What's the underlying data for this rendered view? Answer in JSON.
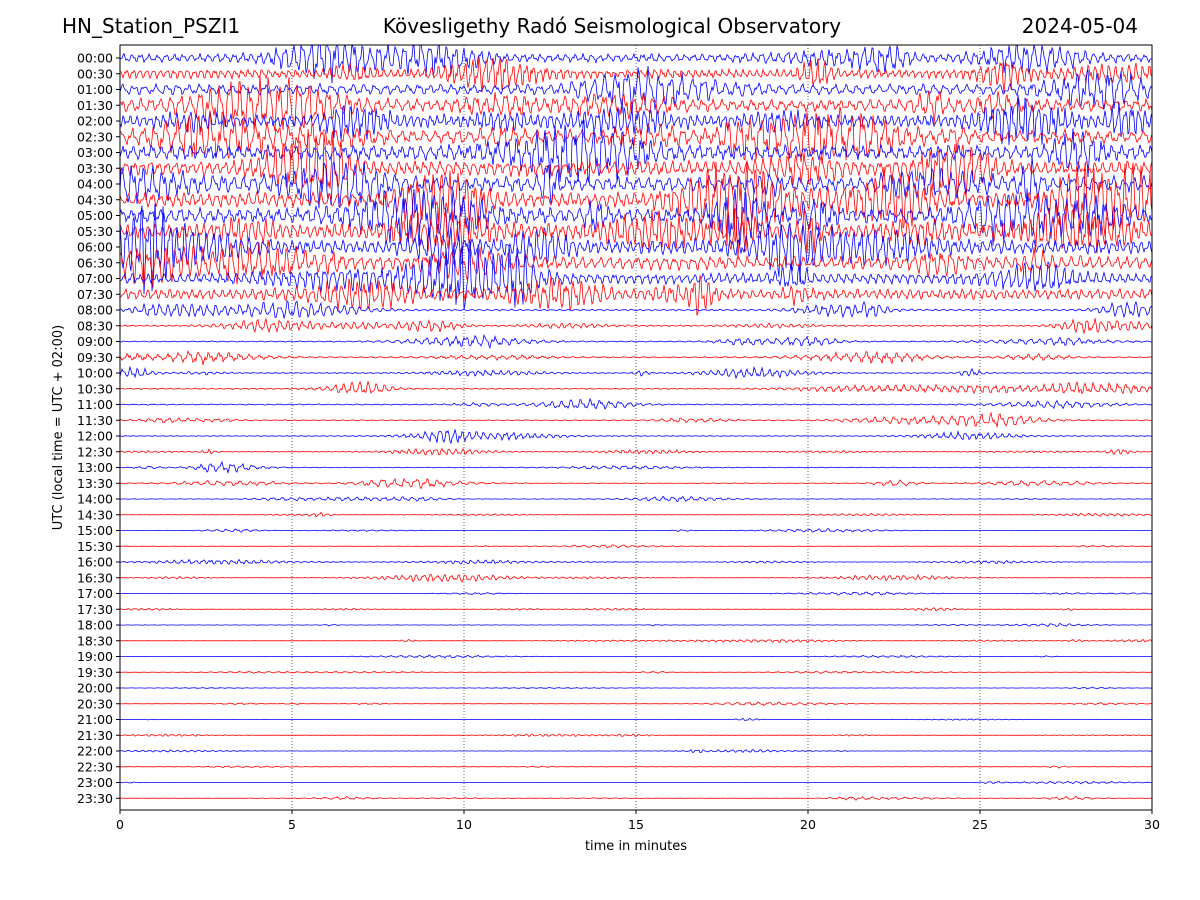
{
  "chart_data": {
    "type": "line",
    "title_left": "HN_Station_PSZI1",
    "title_center": "Kövesligethy Radó Seismological Observatory",
    "title_right": "2024-05-04",
    "xlabel": "time in minutes",
    "ylabel": "UTC (local time = UTC + 02:00)",
    "xlim": [
      0,
      30
    ],
    "x_ticks": [
      0,
      5,
      10,
      15,
      20,
      25,
      30
    ],
    "grid": "vertical dotted",
    "row_labels": [
      "00:00",
      "00:30",
      "01:00",
      "01:30",
      "02:00",
      "02:30",
      "03:00",
      "03:30",
      "04:00",
      "04:30",
      "05:00",
      "05:30",
      "06:00",
      "06:30",
      "07:00",
      "07:30",
      "08:00",
      "08:30",
      "09:00",
      "09:30",
      "10:00",
      "10:30",
      "11:00",
      "11:30",
      "12:00",
      "12:30",
      "13:00",
      "13:30",
      "14:00",
      "14:30",
      "15:00",
      "15:30",
      "16:00",
      "16:30",
      "17:00",
      "17:30",
      "18:00",
      "18:30",
      "19:00",
      "19:30",
      "20:00",
      "20:30",
      "21:00",
      "21:30",
      "22:00",
      "22:30",
      "23:00",
      "23:30"
    ],
    "row_colors": [
      "#0000ff",
      "#ff0000"
    ],
    "amplitude_level": [
      0.55,
      0.6,
      0.7,
      0.8,
      0.85,
      0.9,
      1.0,
      1.0,
      1.0,
      1.0,
      1.0,
      1.0,
      0.95,
      0.9,
      0.7,
      0.7,
      0.3,
      0.25,
      0.2,
      0.2,
      0.15,
      0.2,
      0.2,
      0.15,
      0.12,
      0.1,
      0.12,
      0.1,
      0.06,
      0.06,
      0.05,
      0.04,
      0.04,
      0.05,
      0.04,
      0.04,
      0.05,
      0.03,
      0.03,
      0.03,
      0.03,
      0.03,
      0.03,
      0.03,
      0.03,
      0.02,
      0.02,
      0.03
    ]
  }
}
